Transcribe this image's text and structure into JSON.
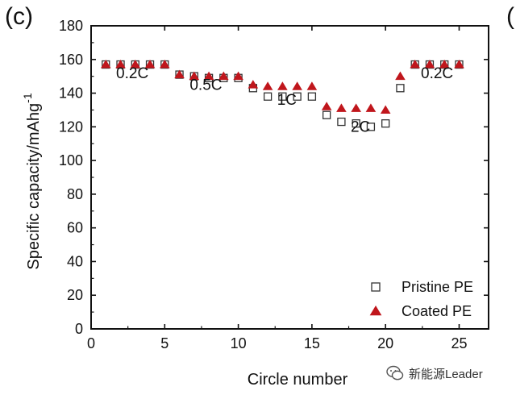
{
  "panel_label": "(c)",
  "next_panel_label": "(",
  "watermark": {
    "text": "新能源Leader",
    "icon": "wechat-icon"
  },
  "colors": {
    "coated": "#c0161c",
    "pristine": "#333333",
    "axis": "#111111"
  },
  "chart_data": {
    "type": "scatter",
    "xlabel": "Circle number",
    "ylabel": "Specific capacity/mAhg",
    "ylabel_superscript": "-1",
    "xlim": [
      0,
      27
    ],
    "ylim": [
      0,
      180
    ],
    "xticks": [
      0,
      5,
      10,
      15,
      20,
      25
    ],
    "yticks": [
      0,
      20,
      40,
      60,
      80,
      100,
      120,
      140,
      160,
      180
    ],
    "grid": false,
    "legend_position": "bottom-right",
    "series": [
      {
        "name": "Pristine PE",
        "marker": "open-square",
        "x": [
          1,
          2,
          3,
          4,
          5,
          6,
          7,
          8,
          9,
          10,
          11,
          12,
          13,
          14,
          15,
          16,
          17,
          18,
          19,
          20,
          21,
          22,
          23,
          24,
          25
        ],
        "y": [
          157,
          157,
          157,
          157,
          157,
          151,
          150,
          149,
          149,
          149,
          143,
          138,
          138,
          138,
          138,
          127,
          123,
          122,
          120,
          122,
          143,
          157,
          157,
          157,
          157
        ]
      },
      {
        "name": "Coated PE",
        "marker": "filled-triangle",
        "x": [
          1,
          2,
          3,
          4,
          5,
          6,
          7,
          8,
          9,
          10,
          11,
          12,
          13,
          14,
          15,
          16,
          17,
          18,
          19,
          20,
          21,
          22,
          23,
          24,
          25
        ],
        "y": [
          157,
          157,
          157,
          157,
          157,
          151,
          150,
          150,
          150,
          150,
          145,
          144,
          144,
          144,
          144,
          132,
          131,
          131,
          131,
          130,
          150,
          157,
          157,
          157,
          157
        ]
      }
    ],
    "annotations": [
      {
        "text": "0.2C",
        "x": 2.8,
        "y": 149
      },
      {
        "text": "0.5C",
        "x": 7.8,
        "y": 142
      },
      {
        "text": "1C",
        "x": 13.3,
        "y": 133
      },
      {
        "text": "2C",
        "x": 18.3,
        "y": 117
      },
      {
        "text": "0.2C",
        "x": 23.5,
        "y": 149
      }
    ]
  }
}
